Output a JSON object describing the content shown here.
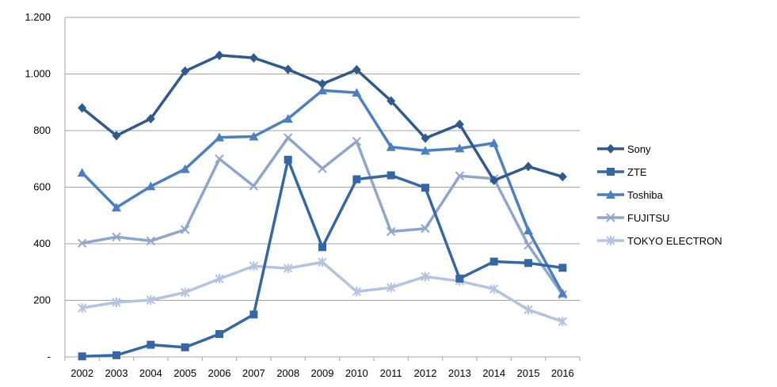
{
  "chart_data": {
    "type": "line",
    "x": [
      "2002",
      "2003",
      "2004",
      "2005",
      "2006",
      "2007",
      "2008",
      "2009",
      "2010",
      "2011",
      "2012",
      "2013",
      "2014",
      "2015",
      "2016"
    ],
    "y_ticks": [
      "-",
      "200",
      "400",
      "600",
      "800",
      "1.000",
      "1.200"
    ],
    "ylim": [
      0,
      1200
    ],
    "grid": true,
    "legend_position": "right",
    "series": [
      {
        "name": "Sony",
        "color": "#2e5a8e",
        "marker": "diamond",
        "values": [
          880,
          782,
          842,
          1010,
          1066,
          1057,
          1016,
          965,
          1015,
          905,
          773,
          822,
          624,
          673,
          637
        ]
      },
      {
        "name": "ZTE",
        "color": "#3567a6",
        "marker": "square",
        "values": [
          2,
          6,
          43,
          34,
          81,
          150,
          697,
          388,
          628,
          642,
          598,
          277,
          337,
          332,
          315
        ]
      },
      {
        "name": "Toshiba",
        "color": "#4a7fc1",
        "marker": "triangle",
        "values": [
          651,
          528,
          603,
          664,
          776,
          779,
          842,
          942,
          934,
          742,
          729,
          737,
          756,
          447,
          225
        ]
      },
      {
        "name": "FUJITSU",
        "color": "#8ea6cd",
        "marker": "x",
        "values": [
          402,
          424,
          410,
          450,
          700,
          604,
          775,
          666,
          762,
          443,
          454,
          640,
          630,
          395,
          220
        ]
      },
      {
        "name": "TOKYO ELECTRON",
        "color": "#b3c3e0",
        "marker": "star",
        "values": [
          173,
          193,
          201,
          228,
          276,
          321,
          313,
          335,
          231,
          245,
          284,
          268,
          240,
          167,
          125
        ]
      }
    ]
  }
}
